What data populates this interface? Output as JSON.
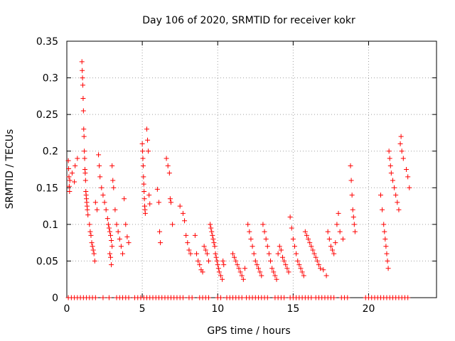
{
  "chart_data": {
    "type": "scatter",
    "title": "Day 106 of 2020, SRMTID for receiver kokr",
    "xlabel": "GPS time / hours",
    "ylabel": "SRMTID / TECUs",
    "xlim": [
      0,
      24.5
    ],
    "ylim": [
      0,
      0.35
    ],
    "xticks": [
      0,
      5,
      10,
      15,
      20
    ],
    "yticks": [
      0,
      0.05,
      0.1,
      0.15,
      0.2,
      0.25,
      0.3,
      0.35
    ],
    "xtick_labels": [
      "0",
      "5",
      "10",
      "15",
      "20"
    ],
    "ytick_labels": [
      "0",
      "0.05",
      "0.1",
      "0.15",
      "0.2",
      "0.25",
      "0.3",
      "0.35"
    ],
    "grid": true,
    "marker": "+",
    "series": [
      {
        "name": "SRMTID",
        "color": "#ff0000",
        "points": [
          [
            0.1,
            0.187
          ],
          [
            0.12,
            0.176
          ],
          [
            0.14,
            0.165
          ],
          [
            0.16,
            0.152
          ],
          [
            0.18,
            0.145
          ],
          [
            0.2,
            0.16
          ],
          [
            0.35,
            0.17
          ],
          [
            0.5,
            0.158
          ],
          [
            0.55,
            0.18
          ],
          [
            0.7,
            0.19
          ],
          [
            1.0,
            0.322
          ],
          [
            1.02,
            0.31
          ],
          [
            1.04,
            0.3
          ],
          [
            1.06,
            0.29
          ],
          [
            1.08,
            0.272
          ],
          [
            1.1,
            0.255
          ],
          [
            1.12,
            0.23
          ],
          [
            1.14,
            0.22
          ],
          [
            1.16,
            0.2
          ],
          [
            1.18,
            0.19
          ],
          [
            1.2,
            0.175
          ],
          [
            1.22,
            0.17
          ],
          [
            1.24,
            0.16
          ],
          [
            1.26,
            0.145
          ],
          [
            1.28,
            0.14
          ],
          [
            1.3,
            0.135
          ],
          [
            1.32,
            0.13
          ],
          [
            1.34,
            0.125
          ],
          [
            1.36,
            0.12
          ],
          [
            1.4,
            0.113
          ],
          [
            1.5,
            0.1
          ],
          [
            1.55,
            0.09
          ],
          [
            1.6,
            0.085
          ],
          [
            1.65,
            0.075
          ],
          [
            1.7,
            0.07
          ],
          [
            1.75,
            0.065
          ],
          [
            1.8,
            0.06
          ],
          [
            1.85,
            0.05
          ],
          [
            1.9,
            0.13
          ],
          [
            2.0,
            0.12
          ],
          [
            2.1,
            0.195
          ],
          [
            2.15,
            0.18
          ],
          [
            2.2,
            0.165
          ],
          [
            2.3,
            0.15
          ],
          [
            2.4,
            0.14
          ],
          [
            2.5,
            0.13
          ],
          [
            2.6,
            0.12
          ],
          [
            2.7,
            0.108
          ],
          [
            2.75,
            0.1
          ],
          [
            2.8,
            0.095
          ],
          [
            2.85,
            0.09
          ],
          [
            2.9,
            0.085
          ],
          [
            2.95,
            0.078
          ],
          [
            3.0,
            0.07
          ],
          [
            2.85,
            0.06
          ],
          [
            2.9,
            0.055
          ],
          [
            2.95,
            0.045
          ],
          [
            3.0,
            0.18
          ],
          [
            3.05,
            0.16
          ],
          [
            3.1,
            0.15
          ],
          [
            3.2,
            0.12
          ],
          [
            3.3,
            0.1
          ],
          [
            3.4,
            0.09
          ],
          [
            3.5,
            0.08
          ],
          [
            3.6,
            0.07
          ],
          [
            3.7,
            0.06
          ],
          [
            3.8,
            0.135
          ],
          [
            3.9,
            0.1
          ],
          [
            4.0,
            0.083
          ],
          [
            4.1,
            0.075
          ],
          [
            5.0,
            0.21
          ],
          [
            5.02,
            0.2
          ],
          [
            5.04,
            0.19
          ],
          [
            5.06,
            0.18
          ],
          [
            5.08,
            0.165
          ],
          [
            5.1,
            0.155
          ],
          [
            5.12,
            0.145
          ],
          [
            5.14,
            0.135
          ],
          [
            5.16,
            0.125
          ],
          [
            5.18,
            0.12
          ],
          [
            5.2,
            0.115
          ],
          [
            5.3,
            0.23
          ],
          [
            5.35,
            0.215
          ],
          [
            5.4,
            0.2
          ],
          [
            5.45,
            0.14
          ],
          [
            5.5,
            0.128
          ],
          [
            6.0,
            0.148
          ],
          [
            6.1,
            0.13
          ],
          [
            6.15,
            0.09
          ],
          [
            6.2,
            0.075
          ],
          [
            6.6,
            0.19
          ],
          [
            6.7,
            0.18
          ],
          [
            6.8,
            0.17
          ],
          [
            6.85,
            0.135
          ],
          [
            6.9,
            0.13
          ],
          [
            7.0,
            0.1
          ],
          [
            7.5,
            0.125
          ],
          [
            7.7,
            0.115
          ],
          [
            7.8,
            0.105
          ],
          [
            7.9,
            0.085
          ],
          [
            8.0,
            0.075
          ],
          [
            8.1,
            0.065
          ],
          [
            8.2,
            0.06
          ],
          [
            8.5,
            0.085
          ],
          [
            8.6,
            0.06
          ],
          [
            8.7,
            0.05
          ],
          [
            8.8,
            0.045
          ],
          [
            8.9,
            0.038
          ],
          [
            9.0,
            0.035
          ],
          [
            9.1,
            0.07
          ],
          [
            9.2,
            0.065
          ],
          [
            9.3,
            0.06
          ],
          [
            9.4,
            0.05
          ],
          [
            9.5,
            0.1
          ],
          [
            9.55,
            0.095
          ],
          [
            9.6,
            0.09
          ],
          [
            9.65,
            0.085
          ],
          [
            9.7,
            0.08
          ],
          [
            9.75,
            0.075
          ],
          [
            9.8,
            0.07
          ],
          [
            9.85,
            0.06
          ],
          [
            9.9,
            0.055
          ],
          [
            9.95,
            0.05
          ],
          [
            10.0,
            0.045
          ],
          [
            10.05,
            0.04
          ],
          [
            10.1,
            0.035
          ],
          [
            10.2,
            0.03
          ],
          [
            10.3,
            0.025
          ],
          [
            10.35,
            0.05
          ],
          [
            10.4,
            0.045
          ],
          [
            11.0,
            0.06
          ],
          [
            11.1,
            0.055
          ],
          [
            11.2,
            0.05
          ],
          [
            11.3,
            0.045
          ],
          [
            11.4,
            0.04
          ],
          [
            11.5,
            0.035
          ],
          [
            11.6,
            0.03
          ],
          [
            11.7,
            0.025
          ],
          [
            11.8,
            0.04
          ],
          [
            12.0,
            0.1
          ],
          [
            12.1,
            0.09
          ],
          [
            12.2,
            0.08
          ],
          [
            12.3,
            0.07
          ],
          [
            12.4,
            0.06
          ],
          [
            12.5,
            0.05
          ],
          [
            12.6,
            0.045
          ],
          [
            12.7,
            0.04
          ],
          [
            12.8,
            0.035
          ],
          [
            12.9,
            0.03
          ],
          [
            13.0,
            0.1
          ],
          [
            13.1,
            0.09
          ],
          [
            13.2,
            0.08
          ],
          [
            13.3,
            0.07
          ],
          [
            13.4,
            0.06
          ],
          [
            13.5,
            0.05
          ],
          [
            13.6,
            0.04
          ],
          [
            13.7,
            0.035
          ],
          [
            13.8,
            0.03
          ],
          [
            13.9,
            0.025
          ],
          [
            14.0,
            0.06
          ],
          [
            14.1,
            0.07
          ],
          [
            14.2,
            0.065
          ],
          [
            14.3,
            0.055
          ],
          [
            14.4,
            0.05
          ],
          [
            14.5,
            0.045
          ],
          [
            14.6,
            0.04
          ],
          [
            14.7,
            0.035
          ],
          [
            14.8,
            0.11
          ],
          [
            14.9,
            0.095
          ],
          [
            15.0,
            0.08
          ],
          [
            15.1,
            0.07
          ],
          [
            15.2,
            0.06
          ],
          [
            15.3,
            0.05
          ],
          [
            15.4,
            0.045
          ],
          [
            15.5,
            0.04
          ],
          [
            15.6,
            0.035
          ],
          [
            15.7,
            0.03
          ],
          [
            15.8,
            0.09
          ],
          [
            15.9,
            0.085
          ],
          [
            16.0,
            0.08
          ],
          [
            16.1,
            0.075
          ],
          [
            16.2,
            0.07
          ],
          [
            16.3,
            0.065
          ],
          [
            16.4,
            0.06
          ],
          [
            16.5,
            0.055
          ],
          [
            16.6,
            0.05
          ],
          [
            16.7,
            0.045
          ],
          [
            16.8,
            0.04
          ],
          [
            17.0,
            0.038
          ],
          [
            17.2,
            0.03
          ],
          [
            17.3,
            0.09
          ],
          [
            17.4,
            0.08
          ],
          [
            17.5,
            0.07
          ],
          [
            17.6,
            0.065
          ],
          [
            17.7,
            0.06
          ],
          [
            17.8,
            0.075
          ],
          [
            17.9,
            0.1
          ],
          [
            18.0,
            0.115
          ],
          [
            18.1,
            0.09
          ],
          [
            18.3,
            0.08
          ],
          [
            18.8,
            0.18
          ],
          [
            18.85,
            0.16
          ],
          [
            18.9,
            0.14
          ],
          [
            18.95,
            0.12
          ],
          [
            19.0,
            0.11
          ],
          [
            19.05,
            0.1
          ],
          [
            19.1,
            0.09
          ],
          [
            20.8,
            0.14
          ],
          [
            20.9,
            0.12
          ],
          [
            21.0,
            0.1
          ],
          [
            21.05,
            0.09
          ],
          [
            21.1,
            0.08
          ],
          [
            21.15,
            0.07
          ],
          [
            21.2,
            0.06
          ],
          [
            21.25,
            0.05
          ],
          [
            21.3,
            0.04
          ],
          [
            21.35,
            0.2
          ],
          [
            21.4,
            0.19
          ],
          [
            21.45,
            0.18
          ],
          [
            21.5,
            0.17
          ],
          [
            21.6,
            0.16
          ],
          [
            21.7,
            0.15
          ],
          [
            21.8,
            0.14
          ],
          [
            21.9,
            0.13
          ],
          [
            22.0,
            0.12
          ],
          [
            22.1,
            0.21
          ],
          [
            22.15,
            0.22
          ],
          [
            22.2,
            0.2
          ],
          [
            22.3,
            0.19
          ],
          [
            22.5,
            0.175
          ],
          [
            22.6,
            0.165
          ],
          [
            22.7,
            0.15
          ]
        ],
        "zero_x": [
          0.1,
          0.3,
          0.5,
          0.7,
          0.9,
          1.1,
          1.3,
          1.5,
          1.7,
          1.9,
          2.4,
          2.8,
          3.3,
          3.5,
          3.7,
          3.9,
          4.1,
          4.5,
          4.7,
          4.9,
          5.1,
          5.3,
          5.5,
          5.7,
          5.9,
          6.1,
          6.3,
          6.5,
          6.7,
          6.9,
          7.1,
          7.3,
          7.5,
          7.7,
          8.1,
          8.3,
          8.8,
          9.0,
          9.2,
          9.4,
          10.0,
          10.2,
          10.6,
          10.8,
          11.0,
          11.2,
          11.4,
          11.6,
          11.9,
          12.1,
          12.3,
          12.5,
          12.7,
          12.9,
          13.1,
          13.3,
          13.8,
          14.0,
          14.2,
          14.4,
          14.8,
          15.0,
          15.2,
          15.4,
          15.6,
          15.8,
          16.0,
          16.2,
          16.5,
          16.7,
          16.9,
          17.1,
          17.3,
          17.5,
          17.7,
          18.2,
          18.4,
          18.6,
          19.8,
          20.0,
          20.2,
          20.4,
          20.6,
          20.8,
          21.0,
          21.2,
          21.4,
          21.6,
          21.8,
          22.0,
          22.2,
          22.4,
          22.6
        ]
      }
    ]
  }
}
